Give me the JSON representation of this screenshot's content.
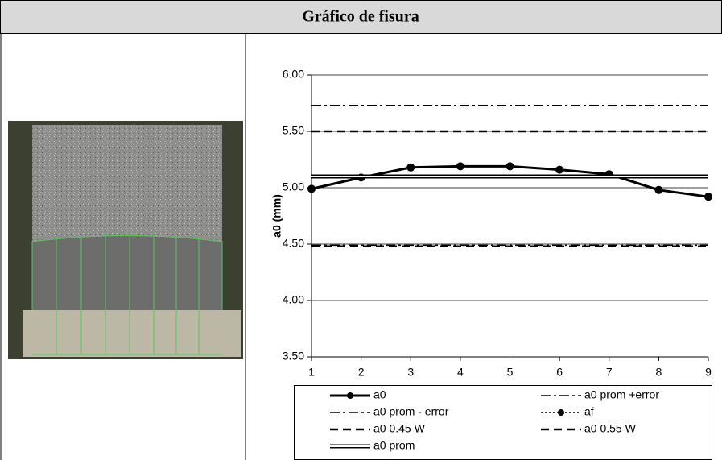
{
  "chart_data": {
    "type": "line",
    "title": "Gráfico de fisura",
    "y_label": "a0 (mm)",
    "x": [
      1,
      2,
      3,
      4,
      5,
      6,
      7,
      8,
      9
    ],
    "xlim": [
      1,
      9
    ],
    "xticks": [
      1,
      2,
      3,
      4,
      5,
      6,
      7,
      8,
      9
    ],
    "ylim": [
      3.5,
      6.0
    ],
    "yticks": [
      {
        "value": 3.5,
        "label": "3.50"
      },
      {
        "value": 4.0,
        "label": "4.00"
      },
      {
        "value": 4.5,
        "label": "4.50"
      },
      {
        "value": 5.0,
        "label": "5.00"
      },
      {
        "value": 5.5,
        "label": "5.50"
      },
      {
        "value": 6.0,
        "label": "6.00"
      }
    ],
    "grid": true,
    "series": [
      {
        "name": "a0",
        "color": "#000000",
        "line_style": "solid",
        "marker": true,
        "values": [
          4.99,
          5.09,
          5.18,
          5.19,
          5.19,
          5.16,
          5.12,
          4.98,
          4.92
        ]
      },
      {
        "name": "a0 prom +error",
        "color": "#000000",
        "line_style": "dashdot",
        "value": 5.73
      },
      {
        "name": "a0 prom - error",
        "color": "#000000",
        "line_style": "dashdot",
        "value": 4.49
      },
      {
        "name": "af",
        "color": "#000000",
        "line_style": "dotted",
        "marker": true,
        "values": [
          null,
          null,
          null,
          null,
          null,
          null,
          null,
          null,
          null
        ]
      },
      {
        "name": "a0 0.45 W",
        "color": "#000000",
        "line_style": "dashed",
        "value": 4.48
      },
      {
        "name": "a0 0.55 W",
        "color": "#000000",
        "line_style": "dashed",
        "value": 5.5
      },
      {
        "name": "a0 prom",
        "color": "#000000",
        "line_style": "double",
        "value": 5.1
      }
    ]
  }
}
